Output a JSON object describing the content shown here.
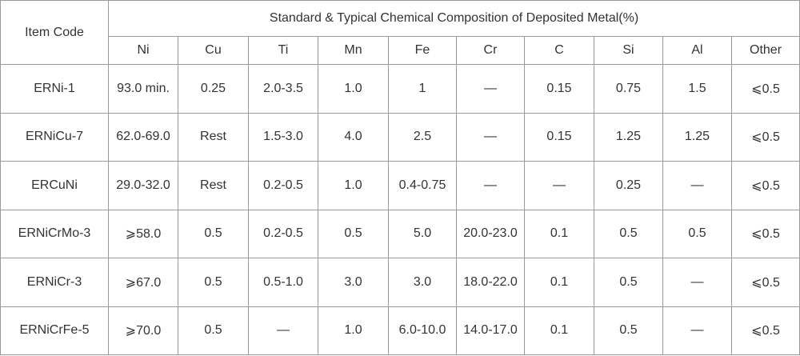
{
  "header": {
    "item_code": "Item Code",
    "title": "Standard & Typical Chemical Composition of Deposited Metal(%)",
    "columns": [
      "Ni",
      "Cu",
      "Ti",
      "Mn",
      "Fe",
      "Cr",
      "C",
      "Si",
      "Al",
      "Other"
    ]
  },
  "table": {
    "rows": [
      [
        "ERNi-1",
        "93.0 min.",
        "0.25",
        "2.0-3.5",
        "1.0",
        "1",
        "—",
        "0.15",
        "0.75",
        "1.5",
        "⩽0.5"
      ],
      [
        "ERNiCu-7",
        "62.0-69.0",
        "Rest",
        "1.5-3.0",
        "4.0",
        "2.5",
        "—",
        "0.15",
        "1.25",
        "1.25",
        "⩽0.5"
      ],
      [
        "ERCuNi",
        "29.0-32.0",
        "Rest",
        "0.2-0.5",
        "1.0",
        "0.4-0.75",
        "—",
        "—",
        "0.25",
        "—",
        "⩽0.5"
      ],
      [
        "ERNiCrMo-3",
        "⩾58.0",
        "0.5",
        "0.2-0.5",
        "0.5",
        "5.0",
        "20.0-23.0",
        "0.1",
        "0.5",
        "0.5",
        "⩽0.5"
      ],
      [
        "ERNiCr-3",
        "⩾67.0",
        "0.5",
        "0.5-1.0",
        "3.0",
        "3.0",
        "18.0-22.0",
        "0.1",
        "0.5",
        "—",
        "⩽0.5"
      ],
      [
        "ERNiCrFe-5",
        "⩾70.0",
        "0.5",
        "—",
        "1.0",
        "6.0-10.0",
        "14.0-17.0",
        "0.1",
        "0.5",
        "—",
        "⩽0.5"
      ]
    ]
  }
}
